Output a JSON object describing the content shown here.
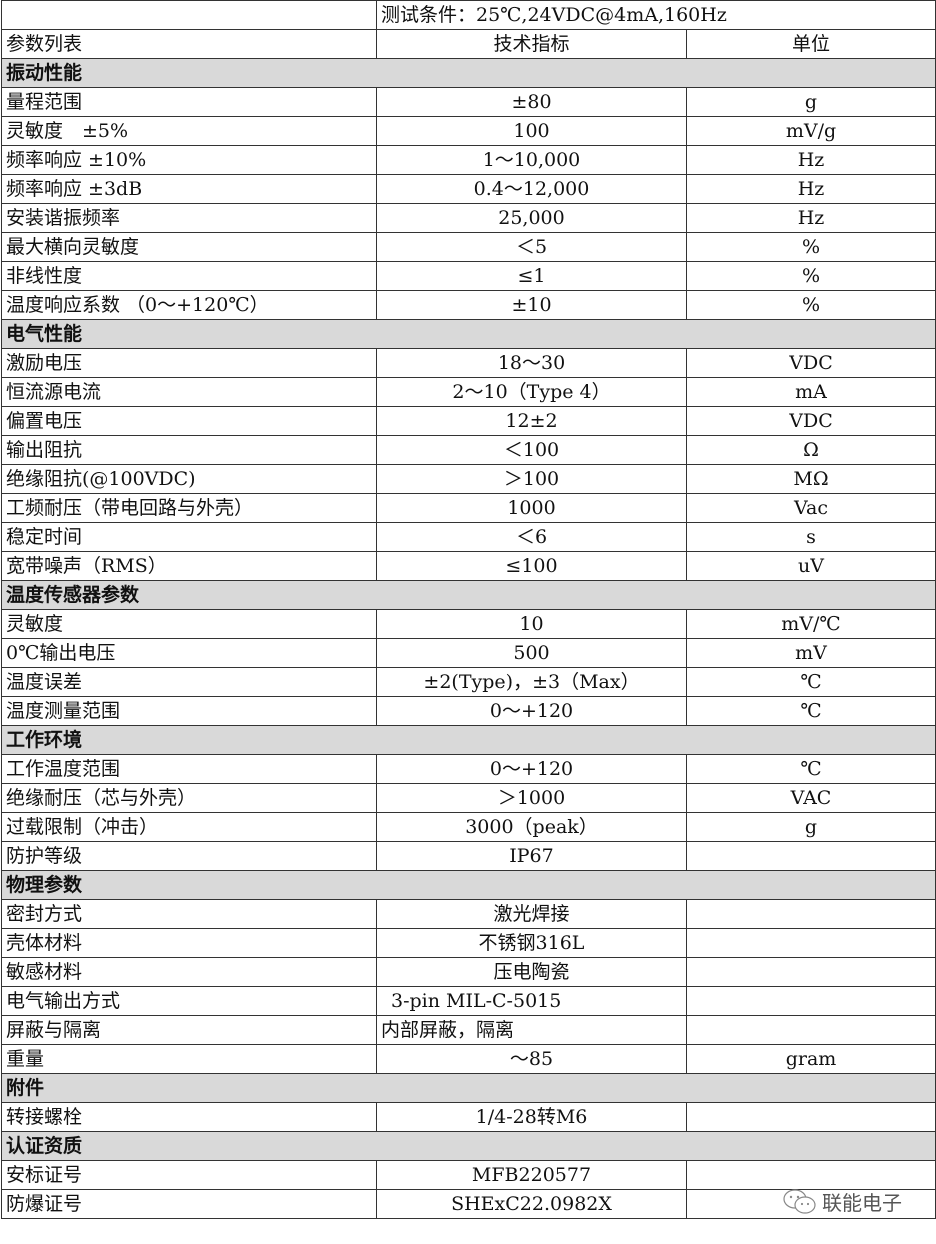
{
  "condition": "测试条件：25℃,24VDC@4mA,160Hz",
  "header": [
    "参数列表",
    "技术指标",
    "单位"
  ],
  "sections": [
    {
      "title": "振动性能",
      "rows": [
        {
          "param": "量程范围",
          "value": "±80",
          "unit": "g"
        },
        {
          "param": "灵敏度　±5%",
          "value": "100",
          "unit": "mV/g"
        },
        {
          "param": "频率响应 ±10%",
          "value": "1～10,000",
          "unit": "Hz"
        },
        {
          "param": "频率响应 ±3dB",
          "value": "0.4～12,000",
          "unit": "Hz"
        },
        {
          "param": "安装谐振频率",
          "value": "25,000",
          "unit": "Hz"
        },
        {
          "param": "最大横向灵敏度",
          "value": "＜5",
          "unit": "%"
        },
        {
          "param": "非线性度",
          "value": "≤1",
          "unit": "%"
        },
        {
          "param": "温度响应系数 （0～+120℃）",
          "value": "±10",
          "unit": "%"
        }
      ]
    },
    {
      "title": "电气性能",
      "rows": [
        {
          "param": "激励电压",
          "value": "18～30",
          "unit": "VDC"
        },
        {
          "param": "恒流源电流",
          "value": "2～10（Type 4）",
          "unit": "mA"
        },
        {
          "param": "偏置电压",
          "value": "12±2",
          "unit": "VDC"
        },
        {
          "param": "输出阻抗",
          "value": "＜100",
          "unit": "Ω"
        },
        {
          "param": "绝缘阻抗(@100VDC)",
          "value": "＞100",
          "unit": "MΩ"
        },
        {
          "param": "工频耐压（带电回路与外壳）",
          "value": "1000",
          "unit": "Vac"
        },
        {
          "param": "稳定时间",
          "value": "＜6",
          "unit": "s"
        },
        {
          "param": "宽带噪声（RMS）",
          "value": "≤100",
          "unit": "uV"
        }
      ]
    },
    {
      "title": "温度传感器参数",
      "rows": [
        {
          "param": "灵敏度",
          "value": "10",
          "unit": "mV/℃"
        },
        {
          "param": "0℃输出电压",
          "value": "500",
          "unit": "mV"
        },
        {
          "param": "温度误差",
          "value": "±2(Type)，±3（Max）",
          "unit": "℃"
        },
        {
          "param": "温度测量范围",
          "value": "0～+120",
          "unit": "℃"
        }
      ]
    },
    {
      "title": "工作环境",
      "rows": [
        {
          "param": "工作温度范围",
          "value": "0～+120",
          "unit": "℃"
        },
        {
          "param": "绝缘耐压（芯与外壳）",
          "value": "＞1000",
          "unit": "VAC"
        },
        {
          "param": "过载限制（冲击）",
          "value": "3000（peak）",
          "unit": "g"
        },
        {
          "param": "防护等级",
          "value": "IP67",
          "unit": ""
        }
      ]
    },
    {
      "title": "物理参数",
      "rows": [
        {
          "param": "密封方式",
          "value": "激光焊接",
          "unit": ""
        },
        {
          "param": "壳体材料",
          "value": "不锈钢316L",
          "unit": ""
        },
        {
          "param": "敏感材料",
          "value": "压电陶瓷",
          "unit": ""
        },
        {
          "param": "电气输出方式",
          "value": "3-pin MIL-C-5015",
          "unit": "",
          "align": "leftpad"
        },
        {
          "param": "屏蔽与隔离",
          "value": "内部屏蔽，隔离",
          "unit": "",
          "align": "left"
        },
        {
          "param": "重量",
          "value": "～85",
          "unit": "gram"
        }
      ]
    },
    {
      "title": "附件",
      "rows": [
        {
          "param": "转接螺栓",
          "value": "1/4-28转M6",
          "unit": ""
        }
      ]
    },
    {
      "title": "认证资质",
      "rows": [
        {
          "param": "安标证号",
          "value": "MFB220577",
          "unit": ""
        },
        {
          "param": "防爆证号",
          "value": "SHExC22.0982X",
          "unit": ""
        }
      ]
    }
  ],
  "watermark": {
    "text": "联能电子",
    "icon": "wechat-icon"
  }
}
